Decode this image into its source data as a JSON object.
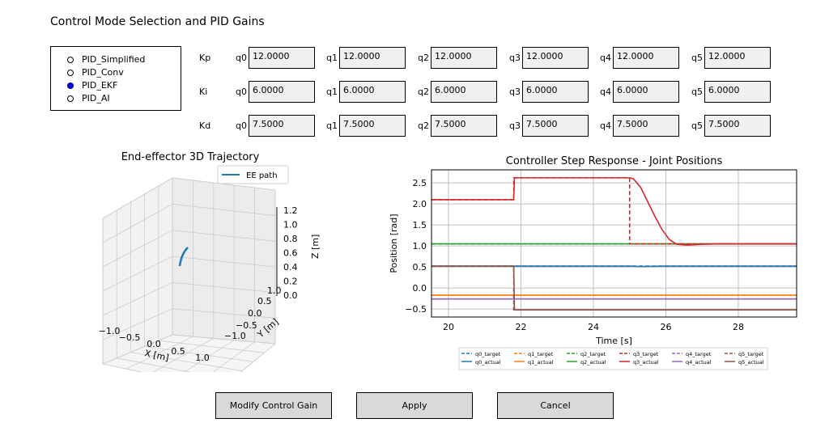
{
  "title": "Control Mode Selection and PID Gains",
  "modes": [
    {
      "label": "PID_Simplified",
      "selected": false
    },
    {
      "label": "PID_Conv",
      "selected": false
    },
    {
      "label": "PID_EKF",
      "selected": true
    },
    {
      "label": "PID_AI",
      "selected": false
    }
  ],
  "gains": [
    {
      "label": "Kp",
      "joints": [
        "q0",
        "q1",
        "q2",
        "q3",
        "q4",
        "q5"
      ],
      "values": [
        "12.0000",
        "12.0000",
        "12.0000",
        "12.0000",
        "12.0000",
        "12.0000"
      ]
    },
    {
      "label": "Ki",
      "joints": [
        "q0",
        "q1",
        "q2",
        "q3",
        "q4",
        "q5"
      ],
      "values": [
        "6.0000",
        "6.0000",
        "6.0000",
        "6.0000",
        "6.0000",
        "6.0000"
      ]
    },
    {
      "label": "Kd",
      "joints": [
        "q0",
        "q1",
        "q2",
        "q3",
        "q4",
        "q5"
      ],
      "values": [
        "7.5000",
        "7.5000",
        "7.5000",
        "7.5000",
        "7.5000",
        "7.5000"
      ]
    }
  ],
  "traj": {
    "title": "End-effector 3D Trajectory",
    "legend": "EE path",
    "xlabel": "X [m]",
    "ylabel": "Y [m]",
    "zlabel": "Z [m]",
    "xticks": [
      "−1.0",
      "−0.5",
      "0.0",
      "0.5",
      "1.0"
    ],
    "yticks": [
      "−1.0",
      "−0.5",
      "0.0",
      "0.5",
      "1.0"
    ],
    "zticks": [
      "0.0",
      "0.2",
      "0.4",
      "0.6",
      "0.8",
      "1.0",
      "1.2"
    ],
    "color": "#1f77b4"
  },
  "chart_data": {
    "type": "line",
    "title": "Controller Step Response - Joint Positions",
    "xlabel": "Time [s]",
    "ylabel": "Position [rad]",
    "xlim": [
      19.53,
      29.61
    ],
    "ylim": [
      -0.69,
      2.81
    ],
    "grid": true,
    "legend_position": "bottom-center",
    "xticks": [
      20,
      22,
      24,
      26,
      28
    ],
    "yticks": [
      -0.5,
      0.0,
      0.5,
      1.0,
      1.5,
      2.0,
      2.5
    ],
    "xtick_labels": [
      "20",
      "22",
      "24",
      "26",
      "28"
    ],
    "ytick_labels": [
      "−0.5",
      "0.0",
      "0.5",
      "1.0",
      "1.5",
      "2.0",
      "2.5"
    ],
    "series": [
      {
        "name": "q0_target",
        "color": "#1f77b4",
        "dash": true,
        "x": [
          19.53,
          29.61
        ],
        "y": [
          0.52,
          0.52
        ]
      },
      {
        "name": "q0_actual",
        "color": "#1f77b4",
        "dash": false,
        "x": [
          19.53,
          25.0,
          25.3,
          26.0,
          29.61
        ],
        "y": [
          0.52,
          0.52,
          0.51,
          0.52,
          0.52
        ]
      },
      {
        "name": "q1_target",
        "color": "#ff7f0e",
        "dash": true,
        "x": [
          19.53,
          29.61
        ],
        "y": [
          -0.17,
          -0.17
        ]
      },
      {
        "name": "q1_actual",
        "color": "#ff7f0e",
        "dash": false,
        "x": [
          19.53,
          29.61
        ],
        "y": [
          -0.17,
          -0.17
        ]
      },
      {
        "name": "q2_target",
        "color": "#2ca02c",
        "dash": true,
        "x": [
          19.53,
          29.61
        ],
        "y": [
          1.05,
          1.05
        ]
      },
      {
        "name": "q2_actual",
        "color": "#2ca02c",
        "dash": false,
        "x": [
          19.53,
          29.61
        ],
        "y": [
          1.05,
          1.05
        ]
      },
      {
        "name": "q4_target",
        "color": "#9467bd",
        "dash": true,
        "x": [
          19.53,
          29.61
        ],
        "y": [
          -0.26,
          -0.26
        ]
      },
      {
        "name": "q4_actual",
        "color": "#9467bd",
        "dash": false,
        "x": [
          19.53,
          29.61
        ],
        "y": [
          -0.26,
          -0.26
        ]
      },
      {
        "name": "q5_target",
        "color": "#8c564b",
        "dash": true,
        "x": [
          19.53,
          21.8,
          21.8,
          29.61
        ],
        "y": [
          0.52,
          0.52,
          -0.52,
          -0.52
        ]
      },
      {
        "name": "q5_actual",
        "color": "#8c564b",
        "dash": false,
        "x": [
          19.53,
          21.8,
          21.82,
          29.61
        ],
        "y": [
          0.52,
          0.52,
          -0.52,
          -0.52
        ]
      },
      {
        "name": "q3_target",
        "color": "#d62728",
        "dash": true,
        "x": [
          19.53,
          21.8,
          21.8,
          25.0,
          25.0,
          29.61
        ],
        "y": [
          2.1,
          2.1,
          2.62,
          2.62,
          1.05,
          1.05
        ]
      },
      {
        "name": "q3_actual",
        "color": "#d62728",
        "dash": false,
        "x": [
          19.53,
          21.8,
          21.82,
          25.0,
          25.1,
          25.3,
          25.5,
          25.7,
          25.9,
          26.1,
          26.3,
          26.6,
          27.0,
          27.5,
          29.61
        ],
        "y": [
          2.1,
          2.1,
          2.62,
          2.62,
          2.6,
          2.4,
          2.05,
          1.7,
          1.38,
          1.15,
          1.04,
          1.02,
          1.04,
          1.05,
          1.05
        ]
      }
    ],
    "legend_order": [
      "q0_target",
      "q1_target",
      "q2_target",
      "q3_target",
      "q4_target",
      "q5_target",
      "q0_actual",
      "q1_actual",
      "q2_actual",
      "q3_actual",
      "q4_actual",
      "q5_actual"
    ]
  },
  "buttons": {
    "modify": "Modify Control Gain",
    "apply": "Apply",
    "cancel": "Cancel"
  }
}
